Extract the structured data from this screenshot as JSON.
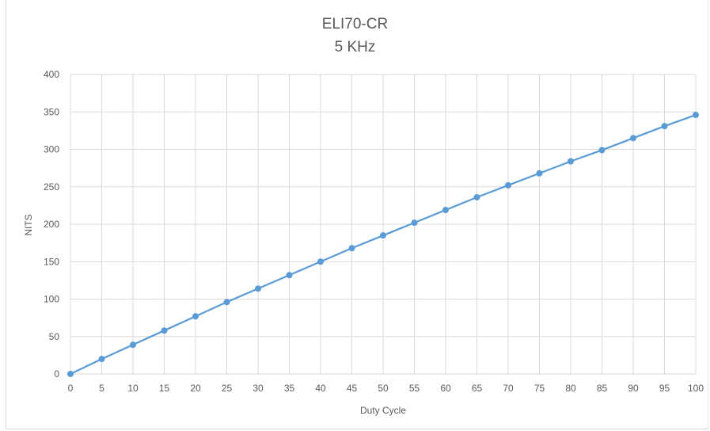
{
  "chart_data": {
    "type": "line",
    "title": "ELI70-CR",
    "subtitle": "5 KHz",
    "xlabel": "Duty Cycle",
    "ylabel": "NITS",
    "xlim": [
      0,
      100
    ],
    "ylim": [
      0,
      400
    ],
    "x_ticks": [
      0,
      5,
      10,
      15,
      20,
      25,
      30,
      35,
      40,
      45,
      50,
      55,
      60,
      65,
      70,
      75,
      80,
      85,
      90,
      95,
      100
    ],
    "y_ticks": [
      0,
      50,
      100,
      150,
      200,
      250,
      300,
      350,
      400
    ],
    "grid": true,
    "legend": "none",
    "series": [
      {
        "color": "#5b9bd5",
        "points": [
          [
            0,
            0
          ],
          [
            5,
            20
          ],
          [
            10,
            39
          ],
          [
            15,
            58
          ],
          [
            20,
            77
          ],
          [
            25,
            96
          ],
          [
            30,
            114
          ],
          [
            35,
            132
          ],
          [
            40,
            150
          ],
          [
            45,
            168
          ],
          [
            50,
            185
          ],
          [
            55,
            202
          ],
          [
            60,
            219
          ],
          [
            65,
            236
          ],
          [
            70,
            252
          ],
          [
            75,
            268
          ],
          [
            80,
            284
          ],
          [
            85,
            299
          ],
          [
            90,
            315
          ],
          [
            95,
            331
          ],
          [
            100,
            346
          ]
        ]
      }
    ]
  }
}
